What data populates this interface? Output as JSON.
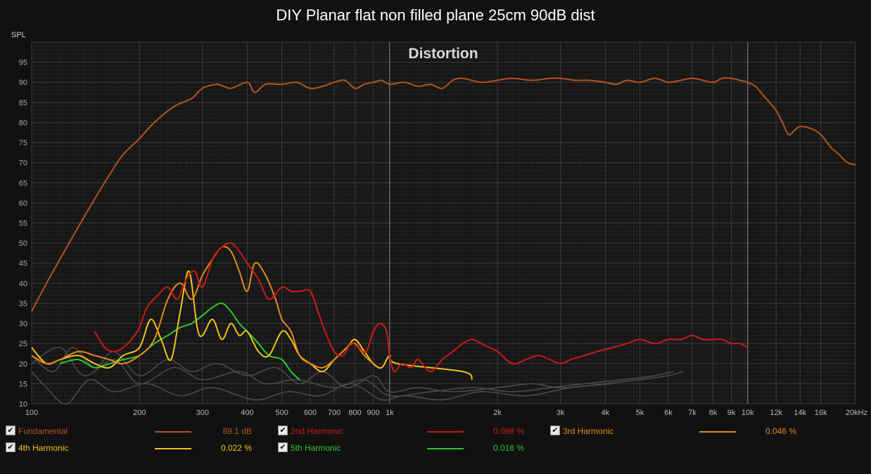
{
  "chart_data": {
    "type": "line",
    "title": "DIY Planar flat non filled plane 25cm 90dB dist",
    "subtitle": "Distortion",
    "ylabel": "SPL",
    "xlabel": "",
    "x_scale": "log",
    "xlim": [
      100,
      20000
    ],
    "ylim": [
      10,
      100
    ],
    "grid": true,
    "x_ticks": [
      {
        "v": 100,
        "label": "100"
      },
      {
        "v": 200,
        "label": "200"
      },
      {
        "v": 300,
        "label": "300"
      },
      {
        "v": 400,
        "label": "400"
      },
      {
        "v": 500,
        "label": "500"
      },
      {
        "v": 600,
        "label": "600"
      },
      {
        "v": 700,
        "label": "700"
      },
      {
        "v": 800,
        "label": "800"
      },
      {
        "v": 900,
        "label": "900"
      },
      {
        "v": 1000,
        "label": "1k"
      },
      {
        "v": 2000,
        "label": "2k"
      },
      {
        "v": 3000,
        "label": "3k"
      },
      {
        "v": 4000,
        "label": "4k"
      },
      {
        "v": 5000,
        "label": "5k"
      },
      {
        "v": 6000,
        "label": "6k"
      },
      {
        "v": 7000,
        "label": "7k"
      },
      {
        "v": 8000,
        "label": "8k"
      },
      {
        "v": 9000,
        "label": "9k"
      },
      {
        "v": 10000,
        "label": "10k"
      },
      {
        "v": 12000,
        "label": "12k"
      },
      {
        "v": 14000,
        "label": "14k"
      },
      {
        "v": 16000,
        "label": "16k"
      },
      {
        "v": 20000,
        "label": "20kHz"
      }
    ],
    "y_ticks": [
      "10",
      "15",
      "20",
      "25",
      "30",
      "35",
      "40",
      "45",
      "50",
      "55",
      "60",
      "65",
      "70",
      "75",
      "80",
      "85",
      "90",
      "95"
    ],
    "series": [
      {
        "name": "Fundamental",
        "value": "89.1 dB",
        "color": "#b5531c",
        "x": [
          100,
          110,
          120,
          135,
          150,
          165,
          180,
          200,
          220,
          250,
          280,
          300,
          330,
          360,
          400,
          420,
          450,
          500,
          550,
          600,
          650,
          700,
          750,
          800,
          850,
          900,
          950,
          1000,
          1100,
          1200,
          1300,
          1400,
          1500,
          1600,
          1800,
          2000,
          2200,
          2500,
          2800,
          3000,
          3300,
          3600,
          4000,
          4300,
          4600,
          5000,
          5500,
          6000,
          6500,
          7000,
          7500,
          8000,
          8500,
          9000,
          9500,
          10000,
          10500,
          11000,
          11500,
          12000,
          12500,
          13000,
          13500,
          14000,
          15000,
          16000,
          17000,
          18000,
          19000,
          20000
        ],
        "y": [
          33,
          40,
          46,
          54,
          61,
          67,
          72,
          76,
          80,
          84,
          86,
          88.5,
          89.5,
          88.5,
          90,
          87.5,
          89.5,
          89.5,
          90,
          88.5,
          89,
          90,
          90.5,
          88.5,
          89.5,
          90,
          90.5,
          89.5,
          90,
          89,
          89.5,
          88.5,
          90.5,
          91,
          90,
          90.5,
          91,
          90.5,
          91,
          91,
          90.5,
          90.5,
          90,
          89.5,
          90.5,
          90,
          91,
          90,
          90.5,
          91,
          90.5,
          90,
          91,
          91,
          90.5,
          90,
          89,
          87,
          85,
          83,
          80,
          77,
          78,
          79,
          78.5,
          77,
          74,
          72,
          70,
          69.5
        ]
      },
      {
        "name": "2nd Harmonic",
        "value": "0.098 %",
        "color": "#cc1a14",
        "x": [
          150,
          160,
          170,
          180,
          190,
          200,
          210,
          225,
          240,
          255,
          270,
          285,
          300,
          320,
          340,
          360,
          380,
          400,
          430,
          460,
          500,
          530,
          560,
          600,
          630,
          660,
          700,
          740,
          780,
          820,
          860,
          900,
          940,
          980,
          1000,
          1030,
          1080,
          1150,
          1200,
          1300,
          1400,
          1500,
          1600,
          1700,
          1800,
          1900,
          2000,
          2200,
          2400,
          2600,
          2800,
          3000,
          3200,
          3500,
          3800,
          4200,
          4600,
          5000,
          5500,
          6000,
          6500,
          7000,
          7500,
          8000,
          8500,
          9000,
          9500,
          10000
        ],
        "y": [
          28,
          24,
          23,
          24,
          26,
          29,
          34,
          37,
          39,
          36,
          41,
          43,
          39,
          46,
          49,
          50,
          48,
          45,
          41,
          36,
          39,
          38,
          38,
          38,
          33,
          28,
          23,
          22,
          25,
          24,
          23,
          28,
          30,
          28,
          22,
          18,
          20,
          19,
          21,
          18,
          21,
          23,
          25,
          26,
          25,
          24,
          23,
          20,
          21,
          22,
          21,
          20,
          21,
          22,
          23,
          24,
          25,
          26,
          25,
          26,
          26,
          27,
          26,
          26,
          26,
          25,
          25,
          24
        ]
      },
      {
        "name": "3rd Harmonic",
        "value": "0.046 %",
        "color": "#e8871a",
        "x": [
          100,
          110,
          120,
          135,
          150,
          165,
          180,
          200,
          220,
          240,
          260,
          280,
          300,
          320,
          340,
          360,
          380,
          400,
          420,
          450,
          480,
          500,
          530,
          560,
          600,
          650,
          700,
          760,
          800,
          850,
          900
        ],
        "y": [
          22,
          20,
          21,
          23,
          22,
          21,
          20,
          22,
          26,
          36,
          40,
          36,
          42,
          46,
          49,
          48,
          43,
          38,
          45,
          42,
          36,
          31,
          28,
          22,
          20,
          19,
          21,
          24,
          25,
          22,
          20
        ]
      },
      {
        "name": "4th Harmonic",
        "value": "0.022 %",
        "color": "#f0c419",
        "x": [
          100,
          110,
          120,
          135,
          150,
          165,
          180,
          200,
          215,
          230,
          245,
          260,
          275,
          290,
          300,
          320,
          340,
          360,
          380,
          400,
          430,
          460,
          500,
          530,
          560,
          600,
          650,
          700,
          760,
          800,
          850,
          900,
          950,
          1000,
          1050,
          1600,
          1700
        ],
        "y": [
          24,
          20,
          21,
          22,
          20,
          19,
          22,
          24,
          31,
          26,
          21,
          33,
          43,
          29,
          27,
          31,
          26,
          30,
          27,
          28,
          23,
          22,
          28,
          26,
          22,
          20,
          18,
          21,
          24,
          26,
          23,
          20,
          19,
          22,
          20,
          18,
          16
        ]
      },
      {
        "name": "5th Harmonic",
        "value": "0.016 %",
        "color": "#2ec82e",
        "x": [
          120,
          135,
          150,
          165,
          180,
          200,
          220,
          240,
          260,
          280,
          300,
          320,
          340,
          360,
          380,
          400,
          430,
          460,
          500,
          530,
          560
        ],
        "y": [
          20,
          21,
          19,
          20,
          21,
          22,
          25,
          27,
          29,
          30,
          32,
          34,
          35,
          33,
          30,
          28,
          25,
          22,
          21,
          18,
          16
        ]
      }
    ]
  },
  "legend": {
    "fundamental_label": "Fundamental",
    "fundamental_value": "89.1 dB",
    "h2_label": "2nd Harmonic",
    "h2_value": "0.098 %",
    "h3_label": "3rd Harmonic",
    "h3_value": "0.046 %",
    "h4_label": "4th Harmonic",
    "h4_value": "0.022 %",
    "h5_label": "5th Harmonic",
    "h5_value": "0.016 %",
    "check_glyph": "✔"
  },
  "colors": {
    "fundamental": "#b5531c",
    "h2": "#cc1a14",
    "h3": "#e8871a",
    "h4": "#f0c419",
    "h5": "#2ec82e",
    "background": "#111111",
    "plot_background": "#161616",
    "grid": "#3a3a3a",
    "noise": "#4a4a4a"
  }
}
